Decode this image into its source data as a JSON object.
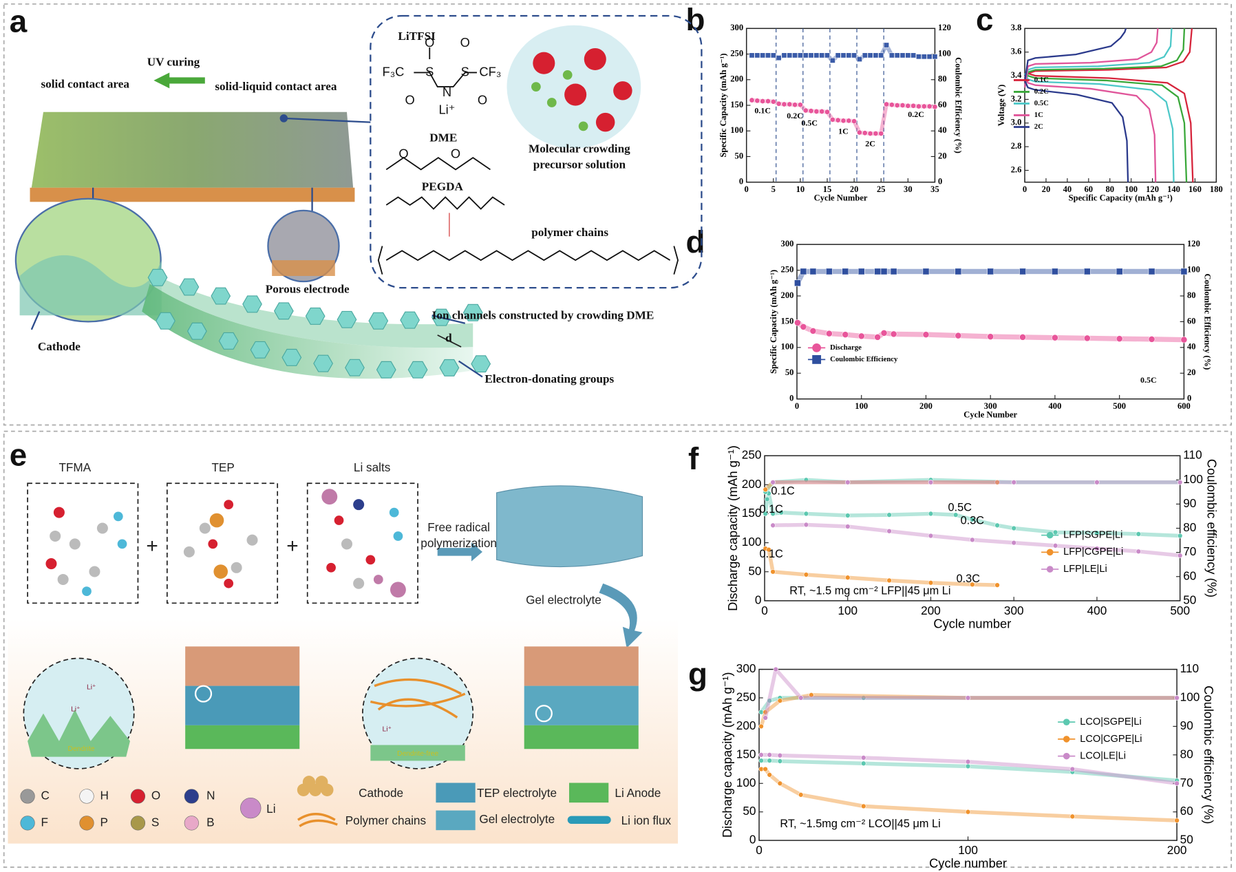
{
  "panel_labels": [
    "a",
    "b",
    "c",
    "d",
    "e",
    "f",
    "g"
  ],
  "diagram_a": {
    "uv_curing": "UV curing",
    "solid": "solid contact area",
    "solid_liquid": "solid-liquid contact area",
    "litfsi": "LiTFSI",
    "dme": "DME",
    "pegda": "PEGDA",
    "crowding": [
      "Molecular crowding",
      "precursor solution"
    ],
    "polymer": "polymer chains",
    "porous": "Porous electrode",
    "ion_channels": "Ion channels constructed by crowding DME",
    "cathode": "Cathode",
    "edg": "Electron-donating groups",
    "d": "d",
    "chem": [
      "F₃C",
      "S",
      "S",
      "CF₃",
      "O",
      "O",
      "O",
      "O",
      "N",
      "Li⁺",
      "O",
      "O"
    ]
  },
  "diagram_e": {
    "tfma": "TFMA",
    "tep": "TEP",
    "li_salts": "Li salts",
    "frp": [
      "Free radical",
      "polymerization"
    ],
    "gel": "Gel electrolyte",
    "li_ion": [
      "Li⁺",
      "Li⁺",
      "Li⁺"
    ],
    "dendrite": "Dendrite",
    "dendrite_free": "Dendrite-free",
    "plus": [
      "+",
      "+"
    ],
    "elements": [
      "C",
      "H",
      "O",
      "N",
      "Li",
      "F",
      "P",
      "S",
      "B"
    ],
    "legend": [
      "Cathode",
      "TEP electrolyte",
      "Li Anode",
      "Polymer chains",
      "Gel electrolyte",
      "Li ion flux"
    ]
  },
  "chart_data": [
    {
      "type": "scatter",
      "xlabel": "Cycle Number",
      "ylabel": "Specific Capacity (mAh g⁻¹)",
      "y2label": "Coulombic Efficiency (%)",
      "xlim": [
        0,
        35
      ],
      "xticks": [
        0,
        5,
        10,
        15,
        20,
        25,
        30,
        35
      ],
      "ylim": [
        0,
        300
      ],
      "yticks": [
        0,
        50,
        100,
        150,
        200,
        250,
        300
      ],
      "y2lim": [
        0,
        120
      ],
      "y2ticks": [
        0,
        20,
        40,
        60,
        80,
        100,
        120
      ],
      "vlines": [
        5.5,
        10.5,
        15.5,
        20.5,
        25.5
      ],
      "annotations": [
        "0.1C",
        "0.2C",
        "0.5C",
        "1C",
        "2C",
        "0.2C"
      ],
      "series": [
        {
          "color": "#e8559a",
          "marker": "circle",
          "x": [
            1,
            2,
            3,
            4,
            5,
            6,
            7,
            8,
            9,
            10,
            11,
            12,
            13,
            14,
            15,
            16,
            17,
            18,
            19,
            20,
            21,
            22,
            23,
            24,
            25,
            26,
            27,
            28,
            29,
            30,
            31,
            32,
            33,
            34,
            35
          ],
          "values": [
            160,
            159,
            158,
            158,
            157,
            153,
            152,
            152,
            151,
            151,
            140,
            139,
            138,
            138,
            137,
            122,
            121,
            120,
            120,
            119,
            97,
            96,
            95,
            95,
            95,
            152,
            151,
            150,
            150,
            149,
            149,
            148,
            148,
            148,
            147
          ]
        },
        {
          "color": "#3a5ba8",
          "marker": "square",
          "axis": "y2",
          "x": [
            1,
            2,
            3,
            4,
            5,
            6,
            7,
            8,
            9,
            10,
            11,
            12,
            13,
            14,
            15,
            16,
            17,
            18,
            19,
            20,
            21,
            22,
            23,
            24,
            25,
            26,
            27,
            28,
            29,
            30,
            31,
            32,
            33,
            34,
            35
          ],
          "values": [
            99,
            99,
            99,
            99,
            99,
            97,
            99,
            99,
            99,
            99,
            99,
            99,
            99,
            99,
            99,
            95,
            99,
            99,
            99,
            99,
            96,
            99,
            99,
            99,
            99,
            107,
            99,
            99,
            99,
            99,
            99,
            98,
            98,
            98,
            98
          ]
        }
      ]
    },
    {
      "type": "line",
      "xlabel": "Specific Capacity (mAh g⁻¹)",
      "ylabel": "Voltage (V)",
      "xlim": [
        0,
        180
      ],
      "xticks": [
        0,
        20,
        40,
        60,
        80,
        100,
        120,
        140,
        160,
        180
      ],
      "ylim": [
        2.5,
        3.8
      ],
      "yticks": [
        2.6,
        2.8,
        {
          "value": 3,
          "label": "3.0"
        },
        3.2,
        3.4,
        3.6,
        3.8
      ],
      "legend": "lower left",
      "series": [
        {
          "name": "0.1C",
          "color": "#d6243b",
          "x": [
            0,
            3,
            10,
            79,
            133,
            149,
            155,
            157,
            null,
            0,
            3,
            10,
            79,
            134,
            150,
            156,
            158
          ],
          "values": [
            3.3,
            3.42,
            3.44,
            3.45,
            3.47,
            3.52,
            3.6,
            3.8,
            null,
            3.42,
            3.42,
            3.4,
            3.38,
            3.34,
            3.25,
            3,
            2.5
          ]
        },
        {
          "name": "0.2C",
          "color": "#3aa83a",
          "x": [
            0,
            3,
            10,
            75,
            128,
            143,
            149,
            150,
            null,
            0,
            3,
            10,
            76,
            129,
            144,
            150,
            152
          ],
          "values": [
            3.3,
            3.43,
            3.45,
            3.46,
            3.48,
            3.53,
            3.62,
            3.8,
            null,
            3.42,
            3.4,
            3.38,
            3.36,
            3.32,
            3.22,
            3,
            2.5
          ]
        },
        {
          "name": "0.5C",
          "color": "#4dc8c8",
          "x": [
            0,
            3,
            10,
            69,
            117,
            131,
            137,
            138,
            null,
            0,
            3,
            10,
            70,
            119,
            133,
            139,
            140
          ],
          "values": [
            3.3,
            3.45,
            3.47,
            3.48,
            3.51,
            3.56,
            3.65,
            3.8,
            null,
            3.42,
            3.37,
            3.35,
            3.33,
            3.28,
            3.18,
            2.95,
            2.5
          ]
        },
        {
          "name": "1C",
          "color": "#e0559a",
          "x": [
            0,
            3,
            10,
            62,
            106,
            119,
            124,
            125,
            null,
            0,
            3,
            10,
            62,
            105,
            117,
            122,
            123
          ],
          "values": [
            3.3,
            3.48,
            3.5,
            3.51,
            3.54,
            3.6,
            3.68,
            3.8,
            null,
            3.4,
            3.34,
            3.32,
            3.29,
            3.23,
            3.12,
            2.9,
            2.5
          ]
        },
        {
          "name": "2C",
          "color": "#2b3a8c",
          "x": [
            0,
            3,
            10,
            48,
            81,
            90,
            94,
            95,
            null,
            0,
            3,
            10,
            49,
            82,
            92,
            96,
            97
          ],
          "values": [
            3.35,
            3.53,
            3.55,
            3.58,
            3.65,
            3.72,
            3.77,
            3.8,
            null,
            3.36,
            3.3,
            3.28,
            3.24,
            3.17,
            3.05,
            2.85,
            2.5
          ]
        }
      ]
    },
    {
      "type": "scatter",
      "xlabel": "Cycle Number",
      "ylabel": "Specific Capacity (mAh g⁻¹)",
      "y2label": "Coulombic Efficiency (%)",
      "xlim": [
        0,
        600
      ],
      "xticks": [
        0,
        100,
        200,
        300,
        400,
        500,
        600
      ],
      "ylim": [
        0,
        300
      ],
      "yticks": [
        0,
        50,
        100,
        150,
        200,
        250,
        300
      ],
      "y2lim": [
        0,
        120
      ],
      "y2ticks": [
        0,
        20,
        40,
        60,
        80,
        100,
        120
      ],
      "legend": "lower left",
      "annotations": [
        "0.5C"
      ],
      "series": [
        {
          "name": "Discharge",
          "color": "#e8559a",
          "marker": "circle",
          "x": [
            1,
            10,
            25,
            50,
            75,
            100,
            125,
            135,
            150,
            200,
            250,
            300,
            350,
            400,
            450,
            500,
            550,
            600
          ],
          "values": [
            148,
            140,
            132,
            127,
            125,
            122,
            120,
            128,
            126,
            125,
            123,
            121,
            120,
            119,
            118,
            117,
            116,
            115
          ]
        },
        {
          "name": "Coulombic Efficiency",
          "color": "#2f4f9f",
          "marker": "square",
          "axis": "y2",
          "x": [
            1,
            10,
            25,
            50,
            75,
            100,
            125,
            135,
            150,
            200,
            250,
            300,
            350,
            400,
            450,
            500,
            550,
            600
          ],
          "values": [
            90,
            99,
            99,
            99,
            99,
            99,
            99,
            99,
            99,
            99,
            99,
            99,
            99,
            99,
            99,
            99,
            99,
            99
          ]
        }
      ]
    },
    {
      "type": "scatter",
      "xlabel": "Cycle number",
      "ylabel": "Discharge capacity (mAh g⁻¹)",
      "y2label": "Coulombic efficiency (%)",
      "xlim": [
        0,
        500
      ],
      "xticks": [
        0,
        100,
        200,
        300,
        400,
        500
      ],
      "ylim": [
        0,
        250
      ],
      "yticks": [
        0,
        50,
        100,
        150,
        200,
        250
      ],
      "y2lim": [
        50,
        110
      ],
      "y2ticks": [
        50,
        60,
        70,
        80,
        90,
        100,
        110
      ],
      "legend": "lower right",
      "annotations": [
        "0.1C",
        "0.1C",
        "0.5C",
        "0.3C",
        "0.1C",
        "0.3C",
        "RT, ~1.5 mg cm⁻²  LFP||45 μm Li"
      ],
      "series": [
        {
          "name": "LFP|SGPE|Li",
          "color": "#5cc8b0",
          "marker": "circle",
          "x": [
            1,
            3,
            5,
            10,
            20,
            50,
            100,
            150,
            200,
            230,
            250,
            280,
            300,
            350,
            400,
            450,
            500
          ],
          "values": [
            150,
            175,
            185,
            150,
            152,
            150,
            147,
            148,
            150,
            148,
            140,
            130,
            125,
            118,
            117,
            115,
            112
          ]
        },
        {
          "name": "LFP|CGPE|Li",
          "color": "#f0922c",
          "marker": "circle",
          "x": [
            1,
            5,
            10,
            50,
            100,
            150,
            200,
            250,
            280
          ],
          "values": [
            90,
            88,
            50,
            45,
            40,
            35,
            31,
            28,
            27
          ]
        },
        {
          "name": "LFP|LE|Li",
          "color": "#c98ac8",
          "marker": "circle",
          "x": [
            10,
            50,
            100,
            150,
            200,
            250,
            300,
            350,
            400,
            450,
            500
          ],
          "values": [
            130,
            131,
            128,
            120,
            112,
            105,
            100,
            95,
            90,
            85,
            78
          ]
        },
        {
          "color": "#5cc8b0",
          "marker": "circle",
          "axis": "y2",
          "x": [
            1,
            10,
            50,
            100,
            200,
            300,
            400,
            500
          ],
          "values": [
            95,
            99,
            100,
            99,
            100,
            99,
            99,
            99
          ]
        },
        {
          "color": "#f0922c",
          "marker": "circle",
          "axis": "y2",
          "x": [
            1,
            10,
            100,
            200,
            280
          ],
          "values": [
            96,
            99,
            99,
            99,
            99
          ]
        },
        {
          "color": "#c98ac8",
          "marker": "circle",
          "axis": "y2",
          "x": [
            10,
            100,
            200,
            300,
            400,
            500
          ],
          "values": [
            99,
            99,
            99,
            99,
            99,
            99
          ]
        }
      ]
    },
    {
      "type": "scatter",
      "xlabel": "Cycle number",
      "ylabel": "Discharge capacity (mAh g⁻¹)",
      "y2label": "Coulombic efficiency (%)",
      "xlim": [
        0,
        200
      ],
      "xticks": [
        0,
        100,
        200
      ],
      "ylim": [
        0,
        300
      ],
      "yticks": [
        0,
        50,
        100,
        150,
        200,
        250,
        300
      ],
      "y2lim": [
        50,
        110
      ],
      "y2ticks": [
        50,
        60,
        70,
        80,
        90,
        100,
        110
      ],
      "legend": "center right",
      "annotations": [
        "RT, ~1.5mg cm⁻²  LCO||45 μm Li"
      ],
      "series": [
        {
          "name": "LCO|SGPE|Li",
          "color": "#5cc8b0",
          "marker": "circle",
          "x": [
            1,
            5,
            10,
            50,
            100,
            150,
            200
          ],
          "values": [
            140,
            140,
            139,
            135,
            130,
            120,
            105
          ]
        },
        {
          "name": "LCO|CGPE|Li",
          "color": "#f0922c",
          "marker": "circle",
          "x": [
            1,
            3,
            5,
            10,
            20,
            50,
            100,
            150,
            200
          ],
          "values": [
            125,
            125,
            115,
            100,
            80,
            60,
            50,
            42,
            35
          ]
        },
        {
          "name": "LCO|LE|Li",
          "color": "#c98ac8",
          "marker": "circle",
          "x": [
            1,
            5,
            10,
            50,
            100,
            150,
            200
          ],
          "values": [
            150,
            150,
            149,
            145,
            138,
            125,
            100
          ]
        },
        {
          "color": "#5cc8b0",
          "marker": "circle",
          "axis": "y2",
          "x": [
            1,
            5,
            10,
            50,
            100,
            200
          ],
          "values": [
            95,
            99,
            100,
            100,
            100,
            100
          ]
        },
        {
          "color": "#f0922c",
          "marker": "circle",
          "axis": "y2",
          "x": [
            1,
            3,
            10,
            25,
            100,
            200
          ],
          "values": [
            90,
            95,
            99,
            101,
            100,
            100
          ]
        },
        {
          "color": "#c98ac8",
          "marker": "circle",
          "axis": "y2",
          "x": [
            3,
            8,
            20,
            100,
            200
          ],
          "values": [
            93,
            110,
            100,
            100,
            100
          ]
        }
      ]
    }
  ]
}
